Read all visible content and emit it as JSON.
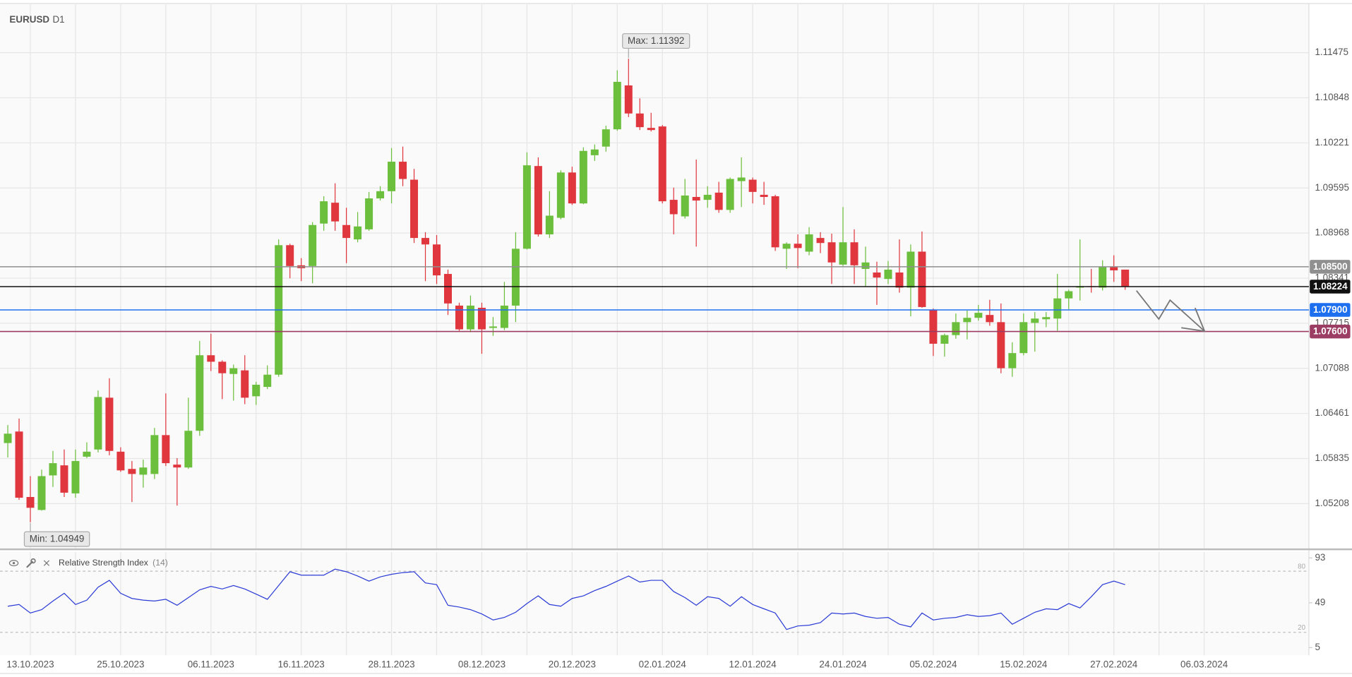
{
  "chart_data": [
    {
      "type": "candlestick",
      "title": "EURUSD",
      "subtitle": "D1",
      "up_color": "#6cbf3c",
      "down_color": "#e0373f",
      "xlim": [
        -0.69,
        115.28
      ],
      "ylim": [
        1.04585,
        1.12146
      ],
      "yticks": [
        1.05208,
        1.05835,
        1.06461,
        1.07088,
        1.07715,
        1.08341,
        1.08968,
        1.09595,
        1.10221,
        1.10848,
        1.11475
      ],
      "grid": true,
      "open": [
        1.0605,
        1.0621,
        1.053,
        1.0512,
        1.056,
        1.0574,
        1.0535,
        1.0586,
        1.0596,
        1.0668,
        1.0593,
        1.0569,
        1.0561,
        1.0562,
        1.0616,
        1.0575,
        1.0571,
        1.0622,
        1.0727,
        1.0718,
        1.0701,
        1.0706,
        1.067,
        1.0683,
        1.07,
        1.088,
        1.0852,
        1.0851,
        1.091,
        1.0939,
        1.0908,
        1.0888,
        1.0902,
        1.0945,
        1.0955,
        1.0996,
        1.0971,
        1.089,
        1.0881,
        1.084,
        1.0796,
        1.0763,
        1.0793,
        1.0765,
        1.0765,
        1.0796,
        1.0875,
        1.099,
        1.0895,
        1.0918,
        1.0981,
        1.0938,
        1.1005,
        1.1017,
        1.1041,
        1.1102,
        1.1063,
        1.1043,
        1.1045,
        1.0943,
        1.092,
        1.0947,
        1.0943,
        1.0953,
        1.0929,
        1.0969,
        1.0971,
        1.095,
        1.0948,
        1.0875,
        1.0882,
        1.0871,
        1.089,
        1.0884,
        1.0853,
        1.0884,
        1.0847,
        1.0842,
        1.0833,
        1.0842,
        1.0821,
        1.0871,
        1.079,
        1.0743,
        1.0755,
        1.0773,
        1.0779,
        1.0783,
        1.0773,
        1.0709,
        1.073,
        1.0772,
        1.0777,
        1.0778,
        1.0806,
        1.0821,
        1.0823,
        1.0821,
        1.085,
        1.0846
      ],
      "high": [
        1.063,
        1.0639,
        1.0559,
        1.0568,
        1.0594,
        1.0596,
        1.0596,
        1.0606,
        1.0678,
        1.0695,
        1.0599,
        1.058,
        1.0582,
        1.0626,
        1.0674,
        1.0584,
        1.0668,
        1.0747,
        1.0757,
        1.072,
        1.0714,
        1.0727,
        1.069,
        1.0713,
        1.0888,
        1.0882,
        1.0862,
        1.0912,
        1.0948,
        1.0966,
        1.0932,
        1.0926,
        1.0954,
        1.0962,
        1.1015,
        1.1017,
        1.0986,
        1.0898,
        1.0894,
        1.0846,
        1.08,
        1.081,
        1.08,
        1.078,
        1.0829,
        1.0898,
        1.1009,
        1.1002,
        1.0955,
        1.0984,
        1.0989,
        1.1016,
        1.102,
        1.1046,
        1.1123,
        1.11392,
        1.1084,
        1.1064,
        1.1047,
        1.096,
        1.0972,
        1.0999,
        1.0962,
        1.0968,
        1.0974,
        1.1002,
        1.0974,
        1.0968,
        1.095,
        1.0884,
        1.0895,
        1.0905,
        1.0898,
        1.0896,
        1.0933,
        1.0902,
        1.0878,
        1.0857,
        1.0858,
        1.0888,
        1.0881,
        1.0899,
        1.0792,
        1.0757,
        1.0785,
        1.0789,
        1.0797,
        1.0804,
        1.0799,
        1.0745,
        1.0785,
        1.0787,
        1.0787,
        1.084,
        1.0818,
        1.0888,
        1.0847,
        1.0859,
        1.0866,
        1.0846
      ],
      "low": [
        1.0585,
        1.0526,
        1.04949,
        1.0511,
        1.0544,
        1.053,
        1.0529,
        1.0584,
        1.0592,
        1.0588,
        1.0565,
        1.0523,
        1.0543,
        1.0555,
        1.0573,
        1.0518,
        1.0569,
        1.0615,
        1.0705,
        1.0666,
        1.0664,
        1.0659,
        1.0658,
        1.068,
        1.0697,
        1.0834,
        1.083,
        1.0827,
        1.09,
        1.09,
        1.0855,
        1.0884,
        1.09,
        1.0942,
        1.0938,
        1.0962,
        1.0883,
        1.083,
        1.0826,
        1.0783,
        1.0761,
        1.0759,
        1.0729,
        1.0754,
        1.0762,
        1.0773,
        1.0874,
        1.0892,
        1.089,
        1.0916,
        1.0936,
        1.0937,
        1.0997,
        1.101,
        1.1039,
        1.1058,
        1.104,
        1.1038,
        1.0938,
        1.0895,
        1.0917,
        1.0878,
        1.0932,
        1.0925,
        1.0925,
        1.0933,
        1.0938,
        1.0936,
        1.0872,
        1.0847,
        1.0848,
        1.0866,
        1.0869,
        1.0826,
        1.0851,
        1.0826,
        1.0822,
        1.0797,
        1.0826,
        1.0814,
        1.0781,
        1.0793,
        1.0726,
        1.0725,
        1.075,
        1.0749,
        1.0775,
        1.0768,
        1.0702,
        1.0697,
        1.0727,
        1.0732,
        1.0766,
        1.0761,
        1.0791,
        1.0803,
        1.0814,
        1.0817,
        1.0829,
        1.0818
      ],
      "close": [
        1.0618,
        1.0529,
        1.0515,
        1.0559,
        1.0577,
        1.0536,
        1.058,
        1.0593,
        1.0669,
        1.0594,
        1.0567,
        1.0562,
        1.0571,
        1.0616,
        1.0577,
        1.0571,
        1.0622,
        1.0727,
        1.0718,
        1.0702,
        1.0709,
        1.0668,
        1.0686,
        1.07,
        1.088,
        1.0851,
        1.0848,
        1.0908,
        1.0941,
        1.0913,
        1.089,
        1.0906,
        1.0945,
        1.0955,
        1.0996,
        1.0972,
        1.089,
        1.0881,
        1.0838,
        1.0799,
        1.0763,
        1.0796,
        1.0763,
        1.0767,
        1.0796,
        1.0875,
        1.0991,
        1.0895,
        1.0921,
        1.0981,
        1.0938,
        1.1011,
        1.1013,
        1.1041,
        1.1107,
        1.1063,
        1.1044,
        1.104,
        1.0941,
        1.0923,
        1.0949,
        1.0942,
        1.095,
        1.0929,
        1.0972,
        1.0974,
        1.0954,
        1.0947,
        1.0877,
        1.0882,
        1.0876,
        1.0895,
        1.0883,
        1.0856,
        1.0884,
        1.0852,
        1.0856,
        1.0835,
        1.0846,
        1.0821,
        1.0871,
        1.0794,
        1.0743,
        1.0755,
        1.0773,
        1.0779,
        1.0786,
        1.0773,
        1.0709,
        1.073,
        1.0773,
        1.0778,
        1.078,
        1.0806,
        1.0816,
        1.0823,
        1.0822,
        1.085,
        1.0845,
        1.0822
      ],
      "levels": [
        {
          "value": 1.085,
          "label": "1.08500",
          "color": "#8f8f8f"
        },
        {
          "value": 1.08224,
          "label": "1.08224",
          "color": "#111111"
        },
        {
          "value": 1.079,
          "label": "1.07900",
          "color": "#1e6ff0"
        },
        {
          "value": 1.076,
          "label": "1.07600",
          "color": "#9c3d63"
        }
      ],
      "annotations": [
        {
          "label": "Max: 1.11392",
          "value": 1.11392,
          "index": 55
        },
        {
          "label": "Min: 1.04949",
          "value": 1.04949,
          "index": 2
        }
      ]
    },
    {
      "type": "line",
      "title": "Relative Strength Index",
      "subtitle": "(14)",
      "color": "#2b3bd6",
      "xlim": [
        -0.69,
        115.28
      ],
      "ylim": [
        -2.62,
        98.92
      ],
      "yticks": [
        5,
        49,
        93
      ],
      "levels": [
        20,
        80
      ],
      "xticks": [
        {
          "value": 2,
          "label": "13.10.2023"
        },
        {
          "value": 10,
          "label": "25.10.2023"
        },
        {
          "value": 18,
          "label": "06.11.2023"
        },
        {
          "value": 26,
          "label": "16.11.2023"
        },
        {
          "value": 34,
          "label": "28.11.2023"
        },
        {
          "value": 42,
          "label": "08.12.2023"
        },
        {
          "value": 50,
          "label": "20.12.2023"
        },
        {
          "value": 58,
          "label": "02.01.2024"
        },
        {
          "value": 66,
          "label": "12.01.2024"
        },
        {
          "value": 74,
          "label": "24.01.2024"
        },
        {
          "value": 82,
          "label": "05.02.2024"
        },
        {
          "value": 90,
          "label": "15.02.2024"
        },
        {
          "value": 98,
          "label": "27.02.2024"
        },
        {
          "value": 106,
          "label": "06.03.2024"
        }
      ],
      "values": [
        45.6,
        47.3,
        38.9,
        42.2,
        50.7,
        58.3,
        47.3,
        51.5,
        64.2,
        71.0,
        58.3,
        53.2,
        51.5,
        50.7,
        52.4,
        46.5,
        54.1,
        61.7,
        65.1,
        62.5,
        65.9,
        62.5,
        57.5,
        52.4,
        65.9,
        79.5,
        76.1,
        76.1,
        76.1,
        82.0,
        79.5,
        75.2,
        70.2,
        74.4,
        76.9,
        78.6,
        79.5,
        68.5,
        66.8,
        46.5,
        44.8,
        42.2,
        38.0,
        32.1,
        34.6,
        39.7,
        48.2,
        55.8,
        47.3,
        45.6,
        53.2,
        55.8,
        60.9,
        65.1,
        70.2,
        75.2,
        69.3,
        71.0,
        71.0,
        60.0,
        54.1,
        46.5,
        54.9,
        53.2,
        45.6,
        54.9,
        47.3,
        43.1,
        38.9,
        22.8,
        26.2,
        27.0,
        29.5,
        38.9,
        38.0,
        38.9,
        35.5,
        33.8,
        34.6,
        27.9,
        25.3,
        38.9,
        32.1,
        33.8,
        34.6,
        37.2,
        35.5,
        36.3,
        38.9,
        27.9,
        33.8,
        39.7,
        43.1,
        42.2,
        48.2,
        43.9,
        54.9,
        66.8,
        70.2,
        66.8
      ]
    }
  ]
}
